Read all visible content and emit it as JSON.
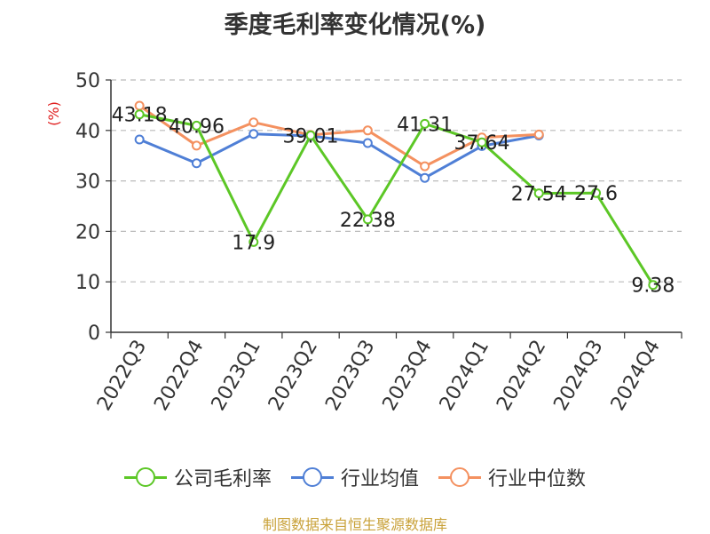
{
  "chart_data": {
    "type": "line",
    "title": "季度毛利率变化情况(%)",
    "ylabel": "(%)",
    "xlabel": "",
    "ylim": [
      0,
      50
    ],
    "y_ticks": [
      0,
      10,
      20,
      30,
      40,
      50
    ],
    "grid": true,
    "legend_position": "bottom",
    "categories": [
      "2022Q3",
      "2022Q4",
      "2023Q1",
      "2023Q2",
      "2023Q3",
      "2023Q4",
      "2024Q1",
      "2024Q2",
      "2024Q3",
      "2024Q4"
    ],
    "series": [
      {
        "name": "公司毛利率",
        "color": "#5cc726",
        "values": [
          43.18,
          40.96,
          17.9,
          39.01,
          22.38,
          41.31,
          37.64,
          27.54,
          27.6,
          9.38
        ],
        "labels": [
          "43.18",
          "40.96",
          "17.9",
          "39.01",
          "22.38",
          "41.31",
          "37.64",
          "27.54",
          "27.6",
          "9.38"
        ]
      },
      {
        "name": "行业均值",
        "color": "#4f7fd6",
        "values": [
          38.2,
          33.5,
          39.3,
          38.9,
          37.5,
          30.6,
          36.9,
          39.0,
          null,
          null
        ]
      },
      {
        "name": "行业中位数",
        "color": "#f49160",
        "values": [
          44.9,
          37.0,
          41.6,
          39.1,
          40.0,
          32.9,
          38.6,
          39.2,
          null,
          null
        ]
      }
    ]
  },
  "footer": {
    "source": "制图数据来自恒生聚源数据库"
  }
}
